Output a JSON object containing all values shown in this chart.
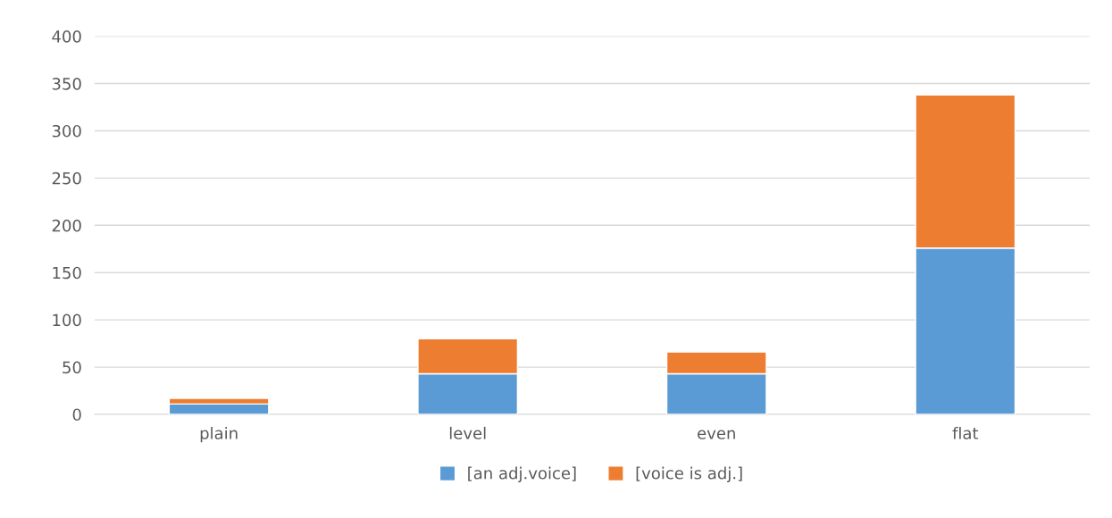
{
  "chart_data": {
    "type": "bar",
    "stacked": true,
    "categories": [
      "plain",
      "level",
      "even",
      "flat"
    ],
    "series": [
      {
        "name": "[an adj.voice]",
        "color": "#5b9bd5",
        "values": [
          11,
          43,
          43,
          176
        ]
      },
      {
        "name": "[voice is adj.]",
        "color": "#ed7d31",
        "values": [
          6,
          37,
          23,
          162
        ]
      }
    ],
    "ylim": [
      0,
      400
    ],
    "yticks": [
      0,
      50,
      100,
      150,
      200,
      250,
      300,
      350,
      400
    ],
    "grid": "y",
    "legend": "bottom"
  }
}
